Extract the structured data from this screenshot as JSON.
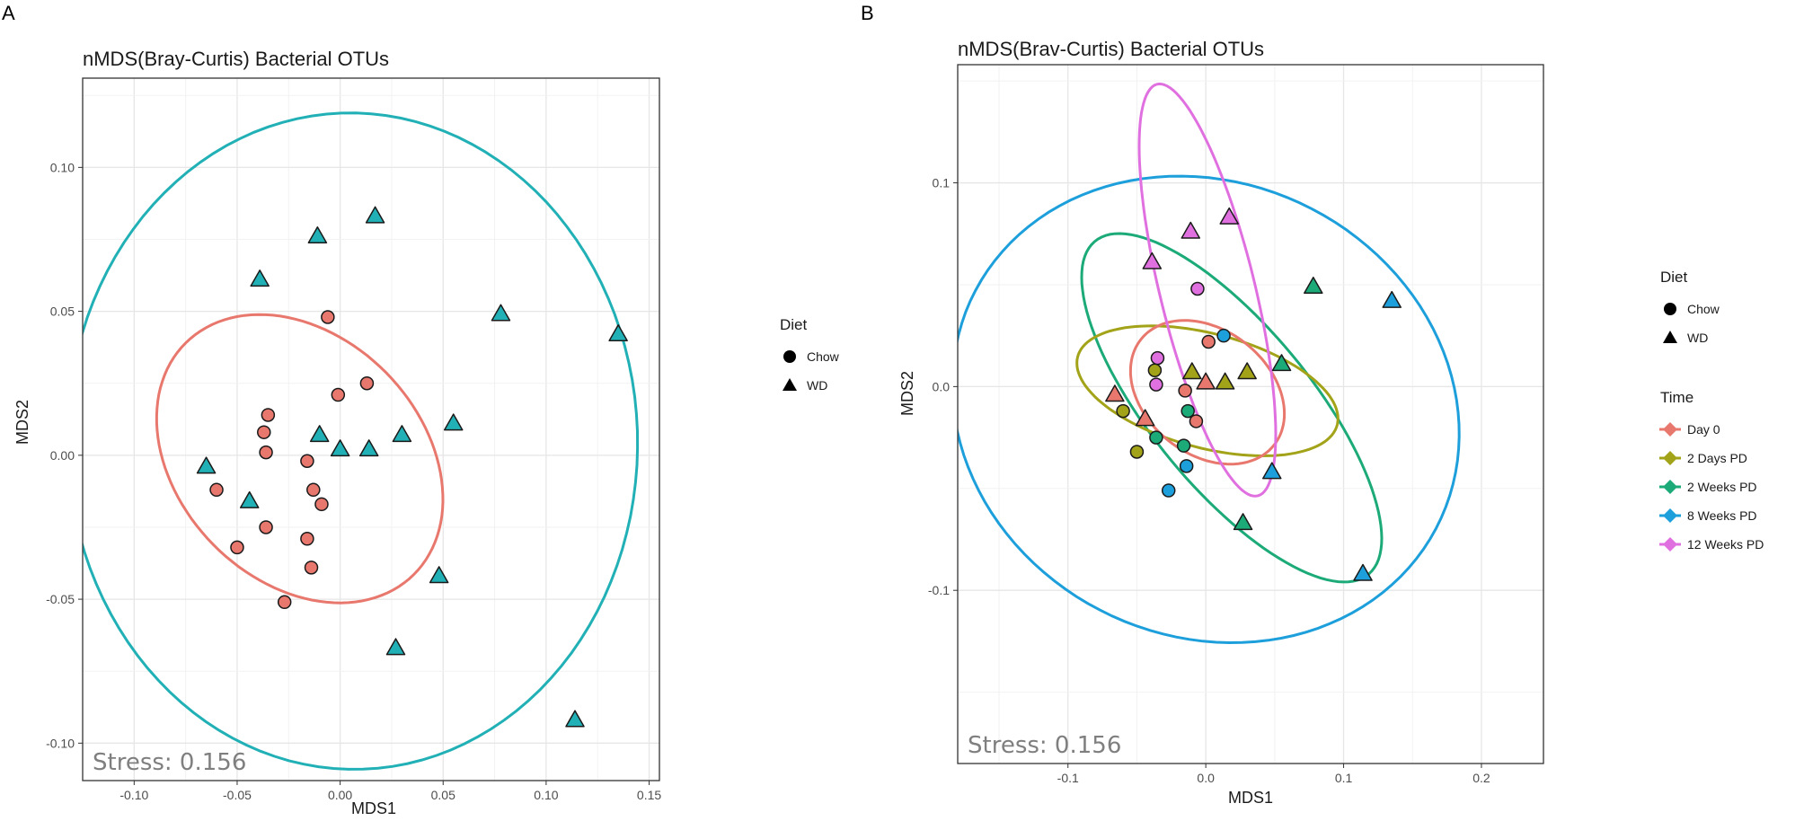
{
  "chart_data": [
    {
      "panel_label": "A",
      "type": "scatter",
      "title": "nMDS(Bray-Curtis) Bacterial OTUs",
      "xlabel": "MDS1",
      "ylabel": "MDS2",
      "xlim": [
        -0.125,
        0.155
      ],
      "ylim": [
        -0.113,
        0.131
      ],
      "xticks": [
        -0.1,
        -0.05,
        0.0,
        0.05,
        0.1,
        0.15
      ],
      "xtick_labels": [
        "-0.10",
        "-0.05",
        "0.00",
        "0.05",
        "0.10",
        "0.15"
      ],
      "yticks": [
        -0.1,
        -0.05,
        0.0,
        0.05,
        0.1
      ],
      "ytick_labels": [
        "-0.10",
        "-0.05",
        "0.00",
        "0.05",
        "0.10"
      ],
      "grid": true,
      "annotation": "Stress: 0.156",
      "legends": [
        {
          "title": "Diet",
          "entries": [
            {
              "label": "Chow",
              "shape": "circle",
              "color": "#000000"
            },
            {
              "label": "WD",
              "shape": "triangle",
              "color": "#000000"
            }
          ]
        }
      ],
      "ellipses": [
        {
          "name": "Chow",
          "color": "#E8786D",
          "center": [
            -0.0196,
            -0.0012
          ],
          "semi_axes": [
            0.0464,
            0.072
          ],
          "angle_deg": 70
        },
        {
          "name": "WD",
          "color": "#21B0B5",
          "center": [
            0.0059,
            0.0049
          ],
          "semi_axes": [
            0.114,
            0.1385
          ],
          "angle_deg": 89
        }
      ],
      "series": [
        {
          "name": "Chow",
          "shape": "circle",
          "color": "#E8786D",
          "points": [
            [
              -0.006,
              0.048
            ],
            [
              -0.001,
              0.021
            ],
            [
              0.013,
              0.025
            ],
            [
              -0.035,
              0.014
            ],
            [
              -0.037,
              0.008
            ],
            [
              -0.036,
              0.001
            ],
            [
              -0.016,
              -0.002
            ],
            [
              -0.06,
              -0.012
            ],
            [
              -0.013,
              -0.012
            ],
            [
              -0.009,
              -0.017
            ],
            [
              -0.036,
              -0.025
            ],
            [
              -0.016,
              -0.029
            ],
            [
              -0.05,
              -0.032
            ],
            [
              -0.014,
              -0.039
            ],
            [
              -0.027,
              -0.051
            ]
          ]
        },
        {
          "name": "WD",
          "shape": "triangle",
          "color": "#21B0B5",
          "points": [
            [
              0.017,
              0.083
            ],
            [
              -0.011,
              0.076
            ],
            [
              -0.039,
              0.061
            ],
            [
              0.078,
              0.049
            ],
            [
              0.135,
              0.042
            ],
            [
              0.055,
              0.011
            ],
            [
              -0.01,
              0.007
            ],
            [
              0.03,
              0.007
            ],
            [
              0.0,
              0.002
            ],
            [
              0.014,
              0.002
            ],
            [
              -0.065,
              -0.004
            ],
            [
              -0.044,
              -0.016
            ],
            [
              0.048,
              -0.042
            ],
            [
              0.027,
              -0.067
            ],
            [
              0.114,
              -0.092
            ]
          ]
        }
      ]
    },
    {
      "panel_label": "B",
      "type": "scatter",
      "title": "nMDS(Brav-Curtis) Bacterial OTUs",
      "xlabel": "MDS1",
      "ylabel": "MDS2",
      "xlim": [
        -0.18,
        0.245
      ],
      "ylim": [
        -0.185,
        0.158
      ],
      "xticks": [
        -0.1,
        0.0,
        0.1,
        0.2
      ],
      "xtick_labels": [
        "-0.1",
        "0.0",
        "0.1",
        "0.2"
      ],
      "yticks": [
        -0.1,
        0.0,
        0.1
      ],
      "ytick_labels": [
        "-0.1",
        "0.0",
        "0.1"
      ],
      "grid": true,
      "annotation": "Stress: 0.156",
      "legends": [
        {
          "title": "Diet",
          "entries": [
            {
              "label": "Chow",
              "shape": "circle",
              "color": "#000000"
            },
            {
              "label": "WD",
              "shape": "triangle",
              "color": "#000000"
            }
          ]
        },
        {
          "title": "Time",
          "entries": [
            {
              "label": "Day 0",
              "shape": "diamond",
              "color": "#E8786D"
            },
            {
              "label": "2 Days PD",
              "shape": "diamond",
              "color": "#A3A319"
            },
            {
              "label": "2 Weeks PD",
              "shape": "diamond",
              "color": "#1BAA78"
            },
            {
              "label": "8 Weeks PD",
              "shape": "diamond",
              "color": "#1D9FDB"
            },
            {
              "label": "12 Weeks PD",
              "shape": "diamond",
              "color": "#E070E0"
            }
          ]
        }
      ],
      "ellipses": [
        {
          "name": "8 Weeks PD",
          "color": "#1D9FDB",
          "center": [
            0.0,
            -0.0112
          ],
          "semi_axes": [
            0.1135,
            0.1845
          ],
          "angle_deg": 84
        },
        {
          "name": "2 Weeks PD",
          "color": "#1BAA78",
          "center": [
            0.0188,
            -0.0104
          ],
          "semi_axes": [
            0.0473,
            0.1301
          ],
          "angle_deg": 54
        },
        {
          "name": "2 Days PD",
          "color": "#A3A319",
          "center": [
            0.0012,
            -0.0021
          ],
          "semi_axes": [
            0.0285,
            0.0958
          ],
          "angle_deg": 81
        },
        {
          "name": "Day 0",
          "color": "#E8786D",
          "center": [
            0.0012,
            -0.0028
          ],
          "semi_axes": [
            0.0328,
            0.0573
          ],
          "angle_deg": 74
        },
        {
          "name": "12 Weeks PD",
          "color": "#E070E0",
          "center": [
            0.0012,
            0.0474
          ],
          "semi_axes": [
            0.0333,
            0.1076
          ],
          "angle_deg": 21
        }
      ],
      "series": [
        {
          "name": "Day 0 - Chow",
          "group": "Day 0",
          "shape": "circle",
          "color": "#E8786D",
          "points": [
            [
              0.002,
              0.022
            ],
            [
              -0.015,
              -0.002
            ],
            [
              -0.007,
              -0.017
            ]
          ]
        },
        {
          "name": "Day 0 - WD",
          "group": "Day 0",
          "shape": "triangle",
          "color": "#E8786D",
          "points": [
            [
              -0.066,
              -0.004
            ],
            [
              -0.044,
              -0.016
            ],
            [
              0.0,
              0.002
            ]
          ]
        },
        {
          "name": "2 Days PD - Chow",
          "group": "2 Days PD",
          "shape": "circle",
          "color": "#A3A319",
          "points": [
            [
              -0.037,
              0.008
            ],
            [
              -0.06,
              -0.012
            ],
            [
              -0.05,
              -0.032
            ]
          ]
        },
        {
          "name": "2 Days PD - WD",
          "group": "2 Days PD",
          "shape": "triangle",
          "color": "#A3A319",
          "points": [
            [
              -0.01,
              0.007
            ],
            [
              0.014,
              0.002
            ],
            [
              0.03,
              0.007
            ]
          ]
        },
        {
          "name": "2 Weeks PD - Chow",
          "group": "2 Weeks PD",
          "shape": "circle",
          "color": "#1BAA78",
          "points": [
            [
              -0.013,
              -0.012
            ],
            [
              -0.036,
              -0.025
            ],
            [
              -0.016,
              -0.029
            ]
          ]
        },
        {
          "name": "2 Weeks PD - WD",
          "group": "2 Weeks PD",
          "shape": "triangle",
          "color": "#1BAA78",
          "points": [
            [
              0.078,
              0.049
            ],
            [
              0.055,
              0.011
            ],
            [
              0.027,
              -0.067
            ]
          ]
        },
        {
          "name": "8 Weeks PD - Chow",
          "group": "8 Weeks PD",
          "shape": "circle",
          "color": "#1D9FDB",
          "points": [
            [
              0.013,
              0.025
            ],
            [
              -0.014,
              -0.039
            ],
            [
              -0.027,
              -0.051
            ]
          ]
        },
        {
          "name": "8 Weeks PD - WD",
          "group": "8 Weeks PD",
          "shape": "triangle",
          "color": "#1D9FDB",
          "points": [
            [
              0.135,
              0.042
            ],
            [
              0.048,
              -0.042
            ],
            [
              0.114,
              -0.092
            ]
          ]
        },
        {
          "name": "12 Weeks PD - Chow",
          "group": "12 Weeks PD",
          "shape": "circle",
          "color": "#E070E0",
          "points": [
            [
              -0.006,
              0.048
            ],
            [
              -0.035,
              0.014
            ],
            [
              -0.036,
              0.001
            ]
          ]
        },
        {
          "name": "12 Weeks PD - WD",
          "group": "12 Weeks PD",
          "shape": "triangle",
          "color": "#E070E0",
          "points": [
            [
              0.017,
              0.083
            ],
            [
              -0.011,
              0.076
            ],
            [
              -0.039,
              0.061
            ]
          ]
        }
      ]
    }
  ]
}
